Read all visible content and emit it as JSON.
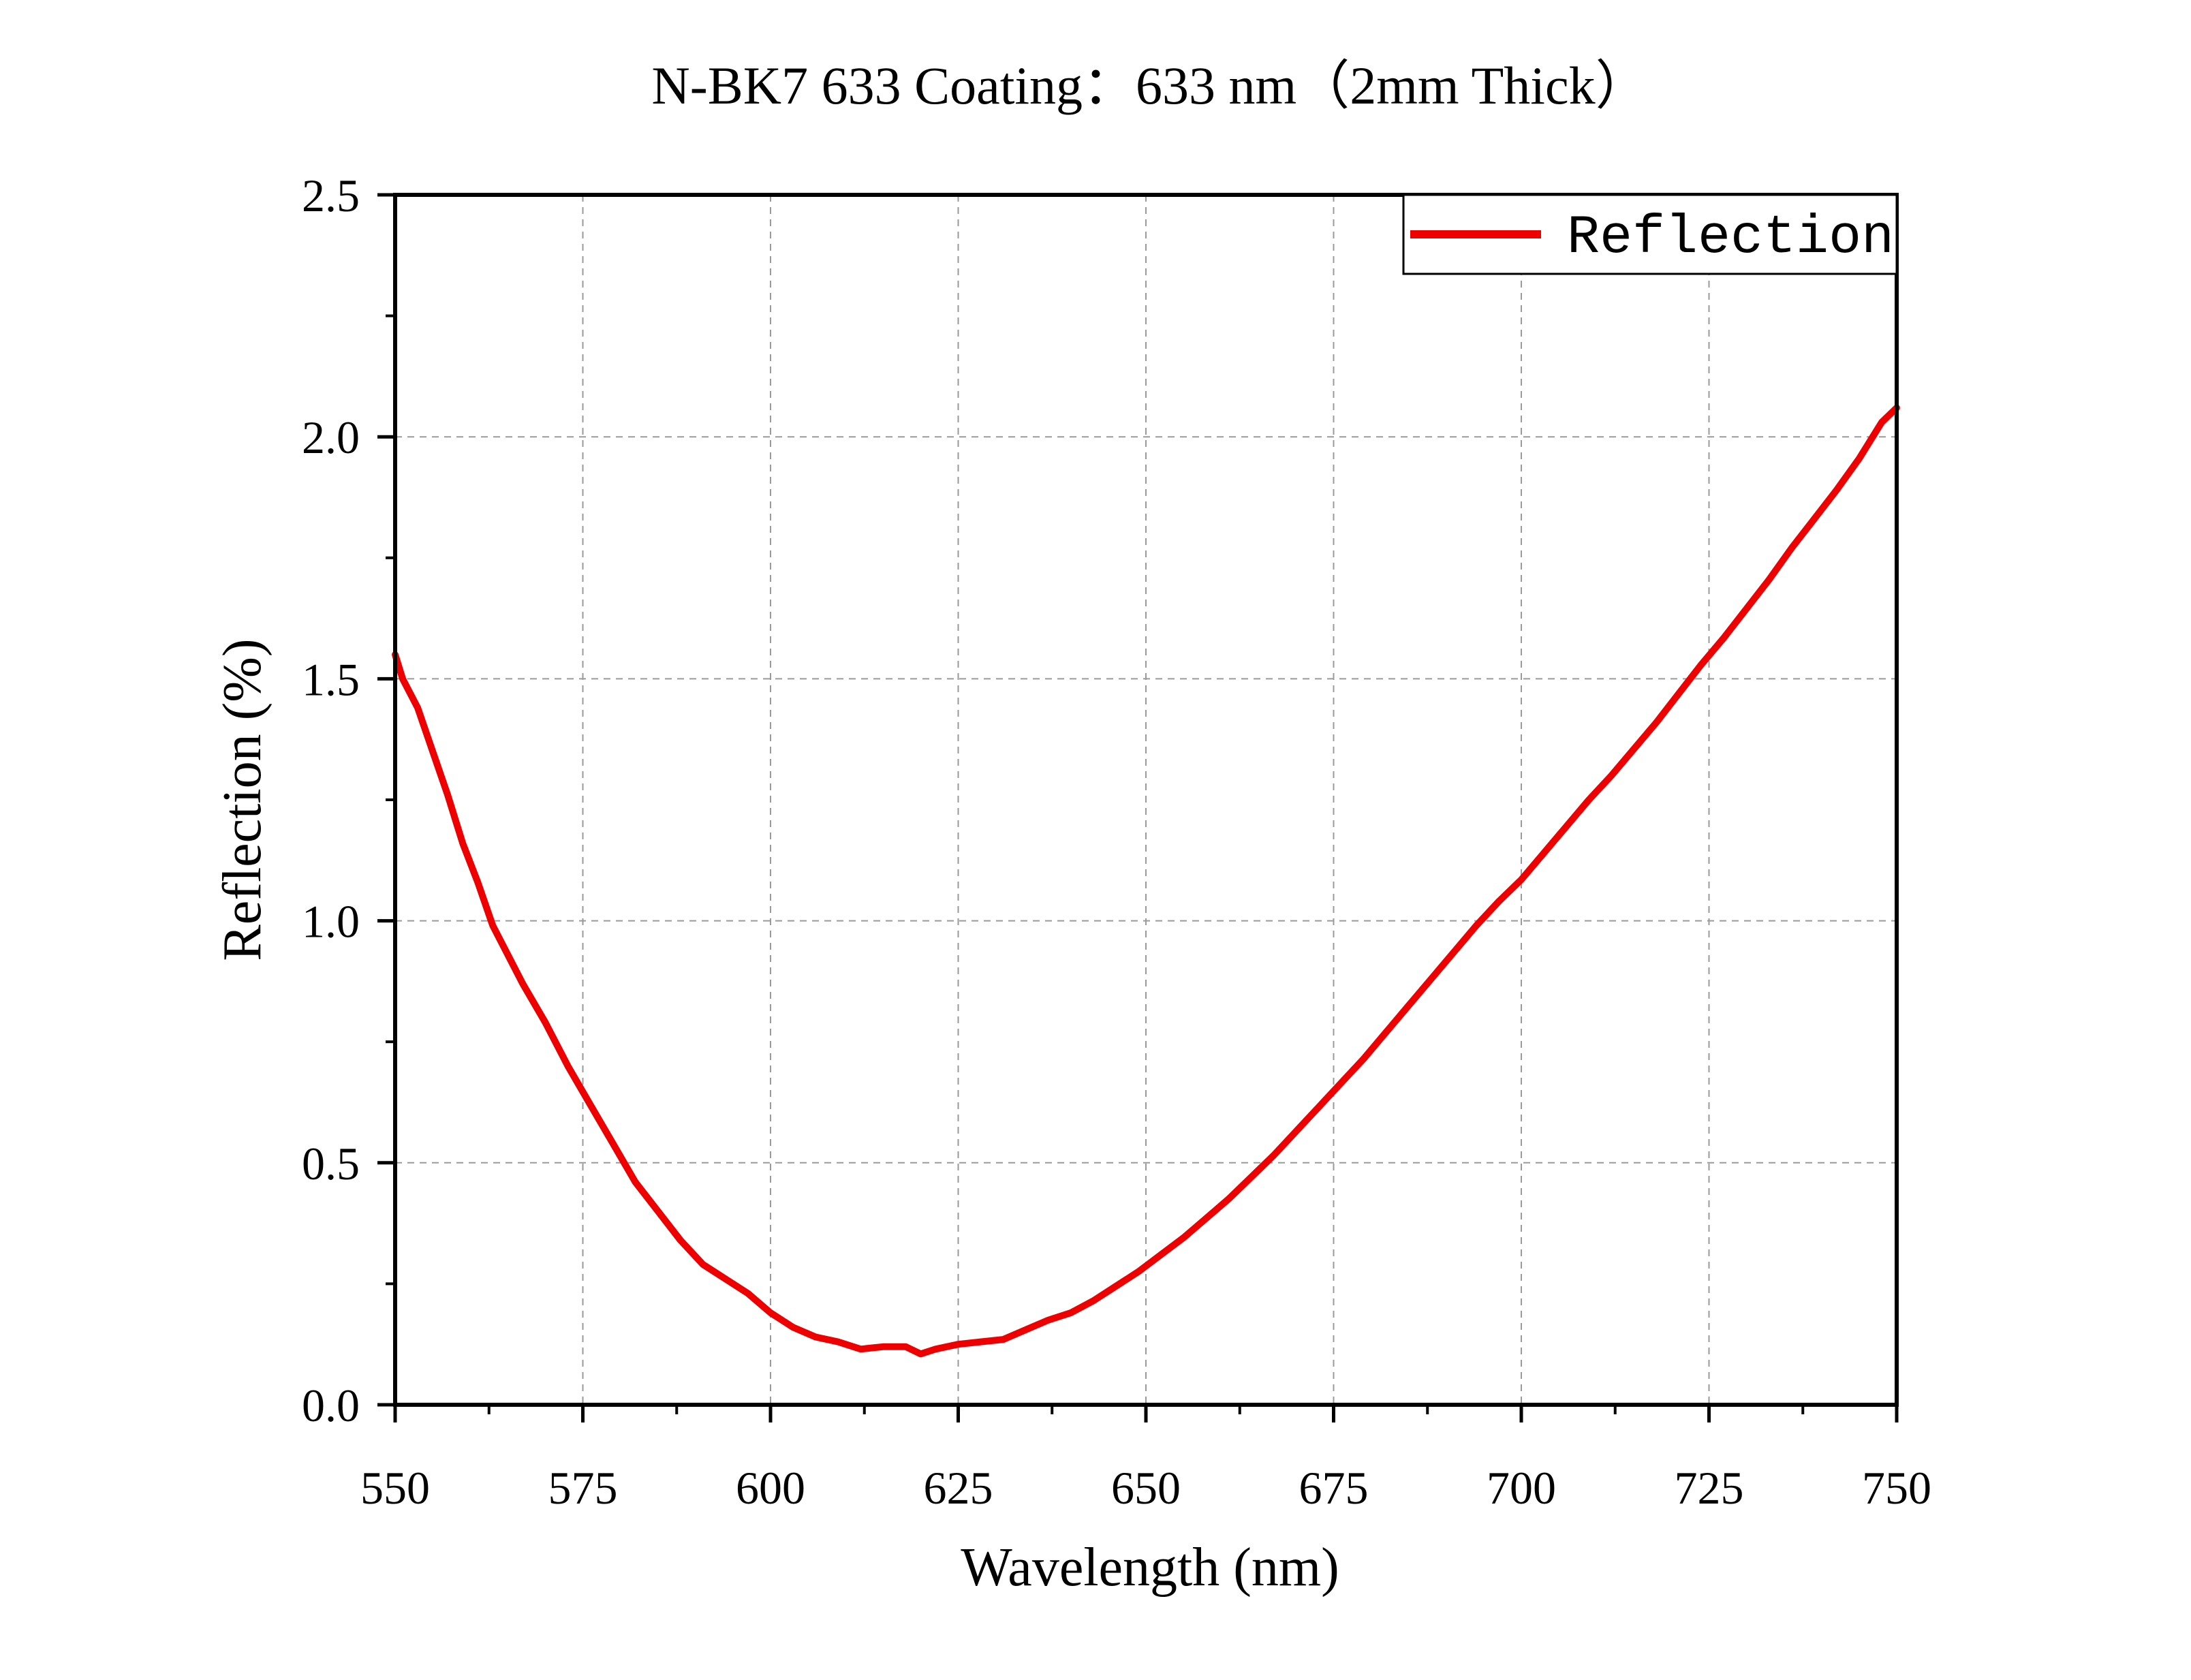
{
  "chart_data": {
    "type": "line",
    "title": "N-BK7 633 Coating：633 nm（2mm Thick）",
    "xlabel": "Wavelength (nm)",
    "ylabel": "Reflection (%)",
    "xlim": [
      550,
      750
    ],
    "ylim": [
      0,
      2.5
    ],
    "x_ticks": [
      550,
      575,
      600,
      625,
      650,
      675,
      700,
      725,
      750
    ],
    "y_ticks": [
      0,
      0.5,
      1.0,
      1.5,
      2.0,
      2.5
    ],
    "x_tick_labels": [
      "550",
      "575",
      "600",
      "625",
      "650",
      "675",
      "700",
      "725",
      "750"
    ],
    "y_tick_labels": [
      "0.0",
      "0.5",
      "1.0",
      "1.5",
      "2.0",
      "2.5"
    ],
    "grid": true,
    "legend_position": "top-right",
    "series": [
      {
        "name": "Reflection",
        "color": "#ee0000",
        "x": [
          550,
          551,
          553,
          555,
          557,
          559,
          561,
          563,
          565,
          567,
          570,
          573,
          576,
          579,
          582,
          585,
          588,
          591,
          594,
          597,
          600,
          603,
          606,
          609,
          612,
          615,
          618,
          620,
          622,
          625,
          628,
          631,
          634,
          637,
          640,
          643,
          646,
          649,
          652,
          655,
          658,
          661,
          664,
          667,
          670,
          673,
          676,
          679,
          682,
          685,
          688,
          691,
          694,
          697,
          700,
          703,
          706,
          709,
          712,
          715,
          718,
          721,
          724,
          727,
          730,
          733,
          736,
          739,
          742,
          745,
          748,
          750
        ],
        "y": [
          1.55,
          1.5,
          1.44,
          1.35,
          1.26,
          1.16,
          1.08,
          0.99,
          0.93,
          0.87,
          0.79,
          0.7,
          0.62,
          0.54,
          0.46,
          0.4,
          0.34,
          0.29,
          0.26,
          0.23,
          0.19,
          0.16,
          0.14,
          0.13,
          0.115,
          0.12,
          0.12,
          0.105,
          0.115,
          0.125,
          0.13,
          0.135,
          0.155,
          0.175,
          0.19,
          0.215,
          0.245,
          0.275,
          0.31,
          0.345,
          0.385,
          0.425,
          0.47,
          0.515,
          0.565,
          0.615,
          0.665,
          0.715,
          0.77,
          0.825,
          0.88,
          0.935,
          0.99,
          1.04,
          1.085,
          1.14,
          1.195,
          1.25,
          1.3,
          1.355,
          1.41,
          1.47,
          1.53,
          1.585,
          1.645,
          1.705,
          1.77,
          1.83,
          1.89,
          1.955,
          2.03,
          2.06
        ]
      }
    ]
  }
}
